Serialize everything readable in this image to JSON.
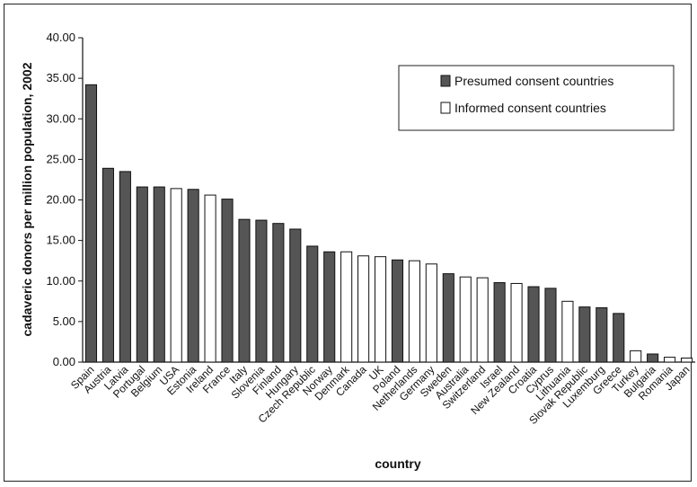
{
  "chart_data": {
    "type": "bar",
    "xlabel": "country",
    "ylabel": "cadaveric donors per million population, 2002",
    "ylim": [
      0,
      40
    ],
    "yticks": [
      "0.00",
      "5.00",
      "10.00",
      "15.00",
      "20.00",
      "25.00",
      "30.00",
      "35.00",
      "40.00"
    ],
    "grid": false,
    "legend_position": "top-right",
    "legend": [
      {
        "key": "presumed",
        "label": "Presumed consent countries",
        "color": "#555555"
      },
      {
        "key": "informed",
        "label": "Informed consent countries",
        "color": "#ffffff"
      }
    ],
    "categories": [
      "Spain",
      "Austria",
      "Latvia",
      "Portugal",
      "Belgium",
      "USA",
      "Estonia",
      "Ireland",
      "France",
      "Italy",
      "Slovenia",
      "Finland",
      "Hungary",
      "Czech Republic",
      "Norway",
      "Denmark",
      "Canada",
      "UK",
      "Poland",
      "Netherlands",
      "Germany",
      "Sweden",
      "Australia",
      "Switzerland",
      "Israel",
      "New Zealand",
      "Croatia",
      "Cyprus",
      "Lithuania",
      "Slovak Republic",
      "Luxemburg",
      "Greece",
      "Turkey",
      "Bulgaria",
      "Romania",
      "Japan"
    ],
    "values": [
      34.2,
      23.9,
      23.5,
      21.6,
      21.6,
      21.4,
      21.3,
      20.6,
      20.1,
      17.6,
      17.5,
      17.1,
      16.4,
      14.3,
      13.6,
      13.6,
      13.1,
      13.0,
      12.6,
      12.5,
      12.1,
      10.9,
      10.5,
      10.4,
      9.8,
      9.7,
      9.3,
      9.1,
      7.5,
      6.8,
      6.7,
      6.0,
      1.4,
      1.0,
      0.6,
      0.5
    ],
    "groups": [
      "presumed",
      "presumed",
      "presumed",
      "presumed",
      "presumed",
      "informed",
      "presumed",
      "informed",
      "presumed",
      "presumed",
      "presumed",
      "presumed",
      "presumed",
      "presumed",
      "presumed",
      "informed",
      "informed",
      "informed",
      "presumed",
      "informed",
      "informed",
      "presumed",
      "informed",
      "informed",
      "presumed",
      "informed",
      "presumed",
      "presumed",
      "informed",
      "presumed",
      "presumed",
      "presumed",
      "informed",
      "presumed",
      "informed",
      "informed"
    ]
  }
}
